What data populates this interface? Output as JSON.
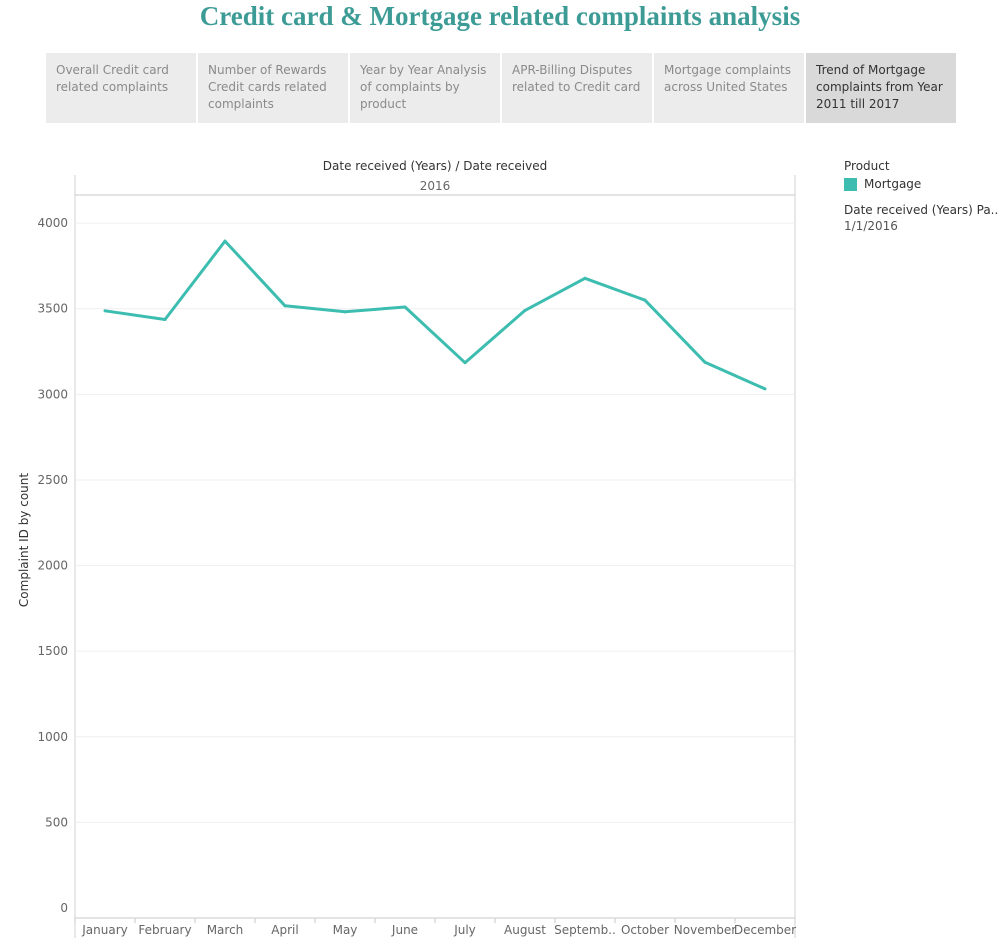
{
  "title": "Credit card & Mortgage related complaints analysis",
  "tabs": [
    {
      "label": "Overall Credit card related complaints",
      "active": false
    },
    {
      "label": "Number of Rewards Credit cards related complaints",
      "active": false
    },
    {
      "label": "Year by Year Analysis of complaints by product",
      "active": false
    },
    {
      "label": "APR-Billing Disputes related to Credit card",
      "active": false
    },
    {
      "label": "Mortgage complaints across United States",
      "active": false
    },
    {
      "label": "Trend of Mortgage complaints from Year 2011 till 2017",
      "active": true
    }
  ],
  "legend": {
    "title": "Product",
    "items": [
      {
        "label": "Mortgage",
        "color": "#3dbdb0"
      }
    ],
    "filter_title": "Date received (Years) Pa..",
    "filter_value": "1/1/2016"
  },
  "chart_data": {
    "type": "line",
    "header": "Date received (Years)  /  Date received",
    "year": "2016",
    "categories": [
      "January",
      "February",
      "March",
      "April",
      "May",
      "June",
      "July",
      "August",
      "Septemb..",
      "October",
      "November",
      "December"
    ],
    "series": [
      {
        "name": "Mortgage",
        "color": "#3dbdb0",
        "values": [
          3488,
          3437,
          3895,
          3517,
          3482,
          3510,
          3185,
          3490,
          3678,
          3550,
          3187,
          3032
        ]
      }
    ],
    "ylabel": "Complaint ID by count",
    "ylim": [
      0,
      4100
    ],
    "yticks": [
      0,
      500,
      1000,
      1500,
      2000,
      2500,
      3000,
      3500,
      4000
    ],
    "grid": true
  }
}
